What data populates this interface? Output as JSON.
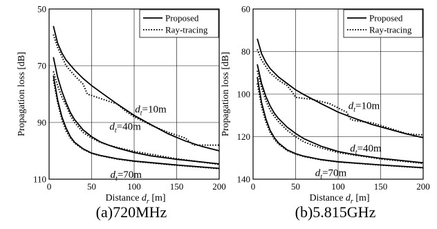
{
  "chart_data": [
    {
      "type": "line",
      "caption": "(a)720MHz",
      "xlabel": "Distance",
      "xlabel_var": "d",
      "xlabel_sub": "r",
      "xlabel_unit": "[m]",
      "ylabel": "Propagation loss [dB]",
      "xlim": [
        0,
        200
      ],
      "ylim": [
        50,
        110
      ],
      "y_inverted": true,
      "xticks": [
        0,
        50,
        100,
        150,
        200
      ],
      "yticks": [
        50,
        70,
        90,
        110
      ],
      "grid": true,
      "legend": [
        "Proposed",
        "Ray-tracing"
      ],
      "legend_position": "top-right",
      "series": [
        {
          "name": "Proposed",
          "label": "10m",
          "style": "solid",
          "x": [
            5,
            10,
            15,
            20,
            30,
            40,
            50,
            60,
            80,
            100,
            120,
            140,
            160,
            180,
            200
          ],
          "y": [
            56,
            62,
            65.5,
            68,
            71.5,
            74.5,
            77,
            79.2,
            83.5,
            87.5,
            90.8,
            94,
            96.5,
            98.5,
            100
          ]
        },
        {
          "name": "Ray-tracing",
          "label": "10m",
          "style": "dotted",
          "x": [
            5,
            10,
            20,
            30,
            40,
            45,
            50,
            60,
            70,
            80,
            90,
            100,
            120,
            140,
            160,
            170,
            180,
            200
          ],
          "y": [
            59,
            63.5,
            70,
            73.5,
            76.5,
            80,
            80.5,
            81.5,
            82.5,
            83.5,
            86,
            88,
            91,
            93.5,
            95.5,
            98,
            98,
            98
          ]
        },
        {
          "name": "Proposed",
          "label": "40m",
          "style": "solid",
          "x": [
            5,
            10,
            15,
            20,
            25,
            30,
            40,
            50,
            60,
            70,
            80,
            100,
            120,
            150,
            200
          ],
          "y": [
            67,
            74,
            79,
            83,
            86.5,
            89,
            92.6,
            95,
            96.8,
            98,
            99,
            100.6,
            101.8,
            103,
            104.6
          ]
        },
        {
          "name": "Ray-tracing",
          "label": "40m",
          "style": "dotted",
          "x": [
            5,
            10,
            15,
            20,
            25,
            30,
            40,
            50,
            60,
            70,
            80,
            100,
            150,
            200
          ],
          "y": [
            72,
            77,
            81,
            84,
            87.5,
            90,
            93.5,
            95.5,
            97,
            98,
            98.8,
            100.2,
            102.8,
            104.8
          ]
        },
        {
          "name": "Proposed",
          "label": "70m",
          "style": "solid",
          "x": [
            5,
            10,
            15,
            20,
            25,
            30,
            40,
            50,
            60,
            80,
            100,
            150,
            200
          ],
          "y": [
            73.5,
            82,
            88,
            92,
            95,
            97,
            99.3,
            100.8,
            101.6,
            102.8,
            103.6,
            105,
            106.2
          ]
        },
        {
          "name": "Ray-tracing",
          "label": "70m",
          "style": "dotted",
          "x": [
            5,
            10,
            15,
            20,
            25,
            30,
            40,
            50,
            60,
            80,
            100,
            150,
            200
          ],
          "y": [
            75,
            83,
            89,
            93,
            95.5,
            97.3,
            99.5,
            100.9,
            101.7,
            102.9,
            103.7,
            105.1,
            106.3
          ]
        }
      ],
      "annotations": [
        {
          "var": "d",
          "sub": "t",
          "text": "=10m",
          "x": 101,
          "y": 86.5
        },
        {
          "var": "d",
          "sub": "t",
          "text": "=40m",
          "x": 71,
          "y": 92.5
        },
        {
          "var": "d",
          "sub": "t",
          "text": "=70m",
          "x": 72,
          "y": 109.5
        }
      ]
    },
    {
      "type": "line",
      "caption": "(b)5.815GHz",
      "xlabel": "Distance",
      "xlabel_var": "d",
      "xlabel_sub": "r",
      "xlabel_unit": "[m]",
      "ylabel": "Propagation loss [dB]",
      "xlim": [
        0,
        200
      ],
      "ylim": [
        60,
        140
      ],
      "y_inverted": true,
      "xticks": [
        0,
        50,
        100,
        150,
        200
      ],
      "yticks": [
        60,
        80,
        100,
        120,
        140
      ],
      "grid": true,
      "legend": [
        "Proposed",
        "Ray-tracing"
      ],
      "legend_position": "top-right",
      "series": [
        {
          "name": "Proposed",
          "label": "10m",
          "style": "solid",
          "x": [
            5,
            10,
            15,
            20,
            30,
            40,
            50,
            60,
            80,
            100,
            120,
            140,
            160,
            180,
            200
          ],
          "y": [
            74,
            81,
            85,
            88,
            92,
            95,
            98,
            100.3,
            104.5,
            108.5,
            111.5,
            114.3,
            116.5,
            118.7,
            120.5
          ]
        },
        {
          "name": "Ray-tracing",
          "label": "10m",
          "style": "dotted",
          "x": [
            5,
            10,
            20,
            30,
            40,
            45,
            50,
            55,
            60,
            70,
            80,
            90,
            100,
            110,
            115,
            120,
            140,
            160,
            180,
            190,
            200
          ],
          "y": [
            79,
            84,
            90,
            93.5,
            96,
            98.5,
            101.5,
            101.8,
            102,
            102.5,
            103.5,
            104.5,
            106.5,
            108.5,
            112,
            112.5,
            113.5,
            116,
            118.5,
            119,
            119.2
          ]
        },
        {
          "name": "Proposed",
          "label": "40m",
          "style": "solid",
          "x": [
            5,
            10,
            15,
            20,
            25,
            30,
            40,
            50,
            60,
            70,
            80,
            100,
            120,
            150,
            200
          ],
          "y": [
            86,
            95,
            101,
            105.5,
            109,
            111.5,
            115.5,
            118.5,
            121,
            122.8,
            124.5,
            127,
            128.5,
            130.2,
            132.3
          ]
        },
        {
          "name": "Ray-tracing",
          "label": "40m",
          "style": "dotted",
          "x": [
            5,
            10,
            15,
            20,
            25,
            30,
            40,
            50,
            60,
            70,
            80,
            100,
            150,
            200
          ],
          "y": [
            89,
            97,
            103,
            107.5,
            110.5,
            113,
            117,
            120,
            122.5,
            124,
            125.3,
            127.5,
            130.5,
            132.6
          ]
        },
        {
          "name": "Proposed",
          "label": "70m",
          "style": "solid",
          "x": [
            5,
            10,
            15,
            20,
            25,
            30,
            40,
            50,
            60,
            80,
            100,
            150,
            200
          ],
          "y": [
            92,
            104,
            111.5,
            117,
            120.5,
            123,
            126.2,
            128,
            129.2,
            130.8,
            131.8,
            133.3,
            134.6
          ]
        },
        {
          "name": "Ray-tracing",
          "label": "70m",
          "style": "dotted",
          "x": [
            5,
            10,
            15,
            20,
            25,
            30,
            40,
            50,
            60,
            80,
            100,
            150,
            200
          ],
          "y": [
            95,
            106,
            113,
            118,
            121.3,
            123.5,
            126.5,
            128.2,
            129.4,
            130.9,
            131.9,
            133.4,
            134.7
          ]
        }
      ],
      "annotations": [
        {
          "var": "d",
          "sub": "t",
          "text": "=10m",
          "x": 112,
          "y": 107
        },
        {
          "var": "d",
          "sub": "t",
          "text": "=40m",
          "x": 114,
          "y": 127
        },
        {
          "var": "d",
          "sub": "t",
          "text": "=70m",
          "x": 73,
          "y": 138.5
        }
      ]
    }
  ]
}
